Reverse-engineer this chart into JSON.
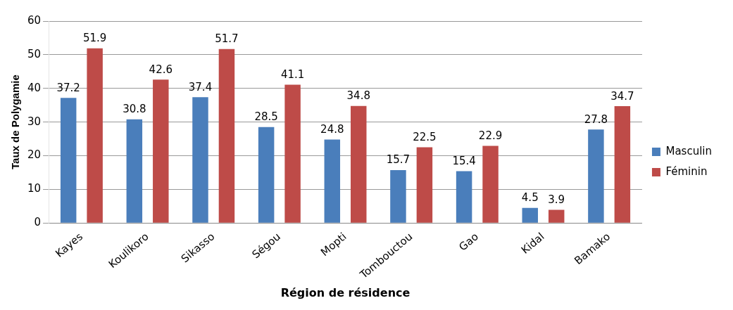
{
  "chart_data": {
    "type": "bar",
    "xlabel": "Région de résidence",
    "ylabel": "Taux de Polygamie",
    "categories": [
      "Kayes",
      "Koulikoro",
      "Sikasso",
      "Ségou",
      "Mopti",
      "Tombouctou",
      "Gao",
      "Kidal",
      "Bamako"
    ],
    "series": [
      {
        "name": "Masculin",
        "color": "#4a7ebb",
        "values": [
          37.2,
          30.8,
          37.4,
          28.5,
          24.8,
          15.7,
          15.4,
          4.5,
          27.8
        ]
      },
      {
        "name": "Féminin",
        "color": "#be4b48",
        "values": [
          51.9,
          42.6,
          51.7,
          41.1,
          34.8,
          22.5,
          22.9,
          3.9,
          34.7
        ]
      }
    ],
    "ylim": [
      0,
      60
    ],
    "yticks": [
      0,
      10,
      20,
      30,
      40,
      50,
      60
    ],
    "grid": "y",
    "legend": "right",
    "data_labels": true
  }
}
